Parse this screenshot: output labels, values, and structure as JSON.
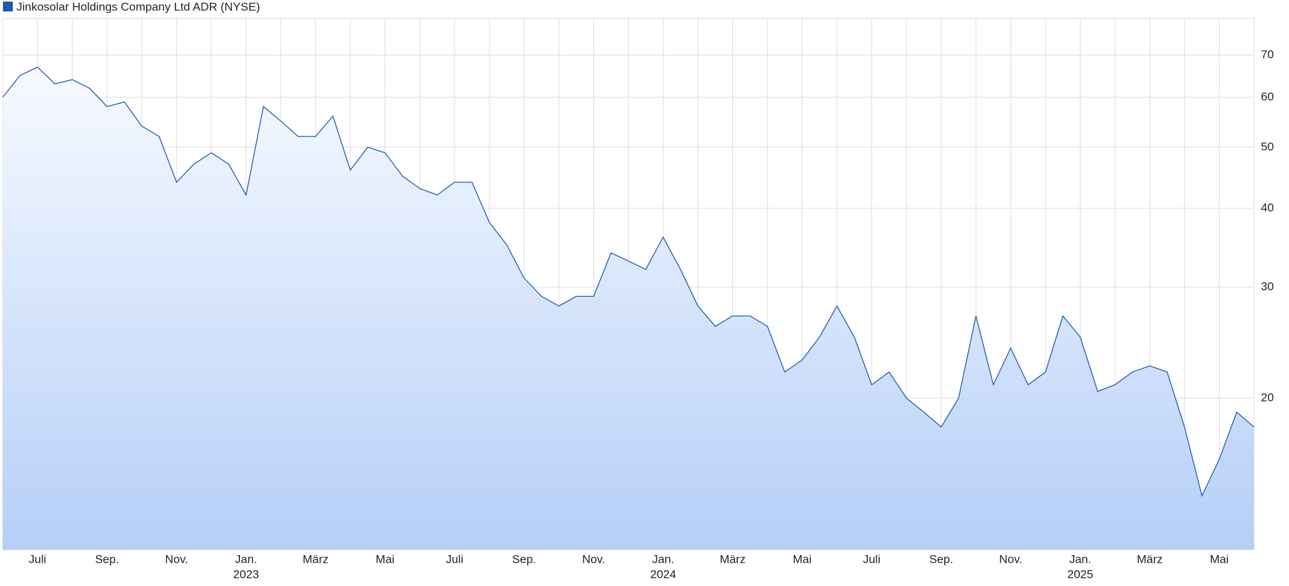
{
  "chart_data": {
    "type": "line",
    "title": "Jinkosolar Holdings Company Ltd ADR (NYSE)",
    "categories": [
      null,
      null,
      "Juli",
      null,
      null,
      null,
      "Sep.",
      null,
      null,
      null,
      "Nov.",
      null,
      null,
      null,
      "Jan.",
      null,
      null,
      null,
      "März",
      null,
      null,
      null,
      "Mai",
      null,
      null,
      null,
      "Juli",
      null,
      null,
      null,
      "Sep.",
      null,
      null,
      null,
      "Nov.",
      null,
      null,
      null,
      "Jan.",
      null,
      null,
      null,
      "März",
      null,
      null,
      null,
      "Mai",
      null,
      null,
      null,
      "Juli",
      null,
      null,
      null,
      "Sep.",
      null,
      null,
      null,
      "Nov.",
      null,
      null,
      null,
      "Jan.",
      null,
      null,
      null,
      "März",
      null,
      null,
      null,
      "Mai",
      null,
      null
    ],
    "years": [
      {
        "value": 14,
        "label": "2023"
      },
      {
        "value": 38,
        "label": "2024"
      },
      {
        "value": 62,
        "label": "2025"
      }
    ],
    "series": [
      {
        "name": "Jinkosolar Holdings Company Ltd ADR (NYSE)",
        "color": "#1f5bb5",
        "values": [
          60,
          65,
          67,
          63,
          64,
          62,
          58,
          59,
          54,
          52,
          44,
          47,
          49,
          47,
          42,
          58,
          55,
          52,
          52,
          56,
          46,
          50,
          49,
          45,
          43,
          42,
          44,
          44,
          38,
          35,
          31,
          29,
          28,
          29,
          29,
          34,
          33,
          32,
          36,
          32,
          28,
          26,
          27,
          27,
          26,
          22,
          23,
          25,
          28,
          25,
          21,
          22,
          20,
          19,
          18,
          20,
          27,
          21,
          24,
          21,
          22,
          27,
          25,
          20.5,
          21,
          22,
          22.5,
          22,
          18,
          14,
          16,
          19,
          18
        ]
      }
    ],
    "ylim": [
      11.5,
      80
    ],
    "yticks": [
      20,
      30,
      40,
      50,
      60,
      70
    ],
    "log_scale": true,
    "grid": true
  }
}
